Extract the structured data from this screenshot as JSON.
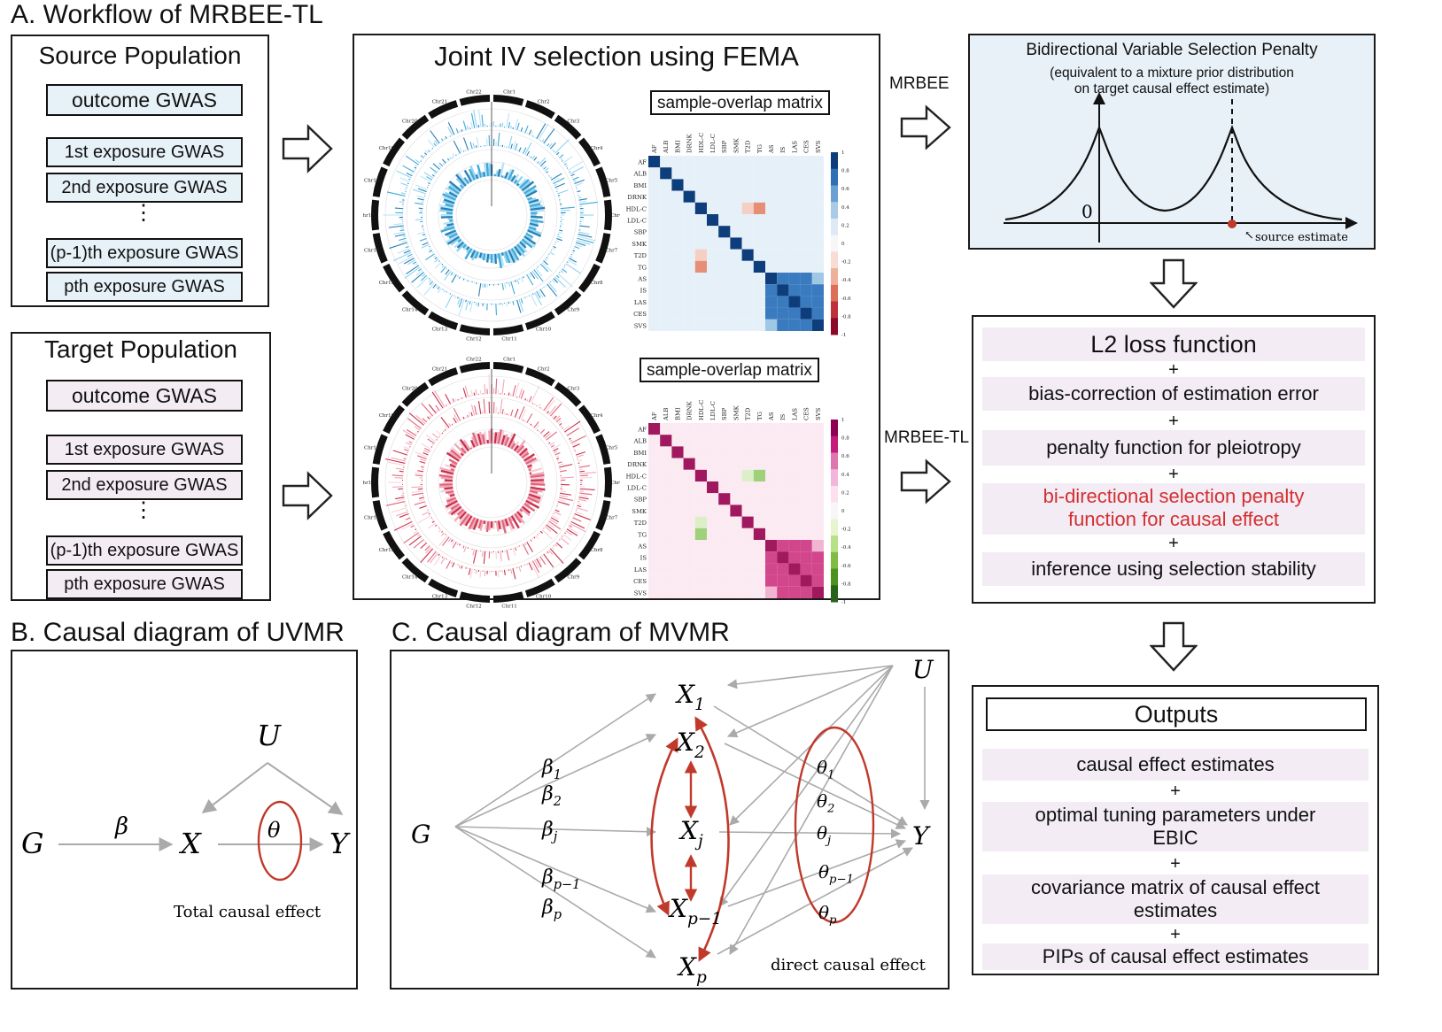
{
  "section_a": {
    "title": "A. Workflow of MRBEE-TL",
    "source": {
      "title": "Source Population",
      "outcome": "outcome GWAS",
      "exposures": [
        "1st exposure GWAS",
        "2nd exposure GWAS",
        "(p-1)th exposure GWAS",
        "pth exposure GWAS"
      ],
      "dots": "⋮"
    },
    "target": {
      "title": "Target Population",
      "outcome": "outcome GWAS",
      "exposures": [
        "1st exposure GWAS",
        "2nd exposure GWAS",
        "(p-1)th exposure GWAS",
        "pth exposure GWAS"
      ],
      "dots": "⋮"
    },
    "joint": {
      "title": "Joint IV selection using FEMA",
      "matrix_label_top": "sample-overlap matrix",
      "matrix_label_bottom": "sample-overlap matrix",
      "traits": [
        "AF",
        "ALB",
        "BMI",
        "DRNK",
        "HDL-C",
        "LDL-C",
        "SBP",
        "SMK",
        "T2D",
        "TG",
        "AS",
        "IS",
        "LAS",
        "CES",
        "SVS"
      ],
      "scale_top": [
        "1",
        "0.8",
        "0.6",
        "0.4",
        "0.2",
        "0",
        "-0.2",
        "-0.4",
        "-0.6",
        "-0.8",
        "-1"
      ],
      "scale_bottom": [
        "1",
        "0.8",
        "0.6",
        "0.4",
        "0.2",
        "0",
        "-0.2",
        "-0.4",
        "-0.6",
        "-0.8",
        "-1"
      ],
      "chromosomes": [
        "Chr1",
        "Chr2",
        "Chr3",
        "Chr4",
        "Chr5",
        "Chr6",
        "Chr7",
        "Chr8",
        "Chr9",
        "Chr10",
        "Chr11",
        "Chr12",
        "Chr13",
        "Chr14",
        "Chr15",
        "Chr16",
        "Chr17",
        "Chr18",
        "Chr19",
        "Chr20",
        "Chr21",
        "Chr22"
      ]
    },
    "mrbee_label": "MRBEE",
    "mrbee_tl_label": "MRBEE-TL",
    "penalty": {
      "title": "Bidirectional Variable Selection Penalty",
      "subtitle_line1": "(equivalent to a mixture prior distribution",
      "subtitle_line2": "on target causal effect estimate)",
      "zero_label": "0",
      "source_label": "source estimate"
    },
    "loss": {
      "items": [
        "L2 loss function",
        "bias-correction of estimation error",
        "penalty function for pleiotropy",
        "bi-directional selection penalty",
        "function for causal effect",
        "inference using selection stability"
      ],
      "plus": "+"
    },
    "outputs": {
      "title": "Outputs",
      "items": [
        "causal effect estimates",
        "optimal tuning parameters under",
        "EBIC",
        "covariance matrix of causal effect",
        "estimates",
        "PIPs of causal effect estimates"
      ],
      "plus": "+"
    }
  },
  "section_b": {
    "title": "B. Causal diagram of UVMR",
    "nodes": {
      "G": "G",
      "X": "X",
      "Y": "Y",
      "U": "U"
    },
    "beta": "β",
    "theta": "θ",
    "caption": "Total causal effect"
  },
  "section_c": {
    "title": "C. Causal diagram of MVMR",
    "G": "G",
    "U": "U",
    "Y": "Y",
    "X_nodes": [
      "X",
      "X",
      "X",
      "X",
      "X"
    ],
    "X_subs": [
      "1",
      "2",
      "j",
      "p−1",
      "p"
    ],
    "betas": [
      "β",
      "β",
      "β",
      "β",
      "β"
    ],
    "beta_subs": [
      "1",
      "2",
      "j",
      "p−1",
      "p"
    ],
    "thetas": [
      "θ",
      "θ",
      "θ",
      "θ",
      "θ"
    ],
    "theta_subs": [
      "1",
      "2",
      "j",
      "p−1",
      "p"
    ],
    "caption": "direct causal effect"
  },
  "colors": {
    "source_fill": "#e6f1f8",
    "target_fill": "#f3ecf3",
    "penalty_bg": "#e8f1f8",
    "red_text": "#d32f2f",
    "circos_blue": "#3fa9d8",
    "circos_red": "#c8304a",
    "diagram_red": "#c0392b"
  }
}
